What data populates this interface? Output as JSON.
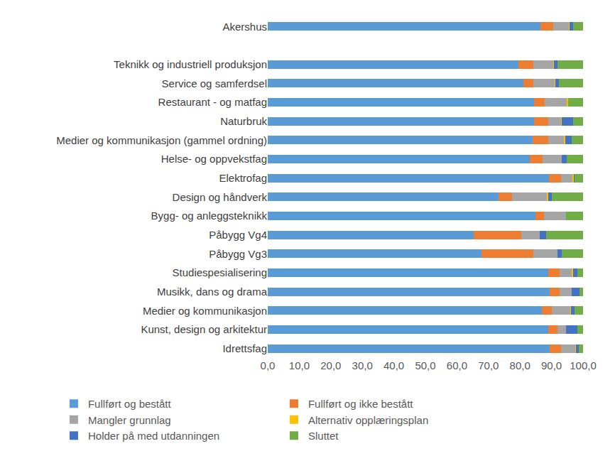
{
  "chart_data": {
    "type": "bar",
    "orientation": "horizontal",
    "stacked": true,
    "grid": false,
    "legend": "bottom",
    "categories": [
      "Akershus",
      null,
      "Teknikk og industriell produksjon",
      "Service og samferdsel",
      "Restaurant - og matfag",
      "Naturbruk",
      "Medier og kommunikasjon (gammel ordning)",
      "Helse- og oppvekstfag",
      "Elektrofag",
      "Design og håndverk",
      "Bygg- og anleggsteknikk",
      "Påbygg Vg4",
      "Påbygg Vg3",
      "Studiespesialisering",
      "Musikk, dans og drama",
      "Medier og kommunikasjon",
      "Kunst, design og arkitektur",
      "Idrettsfag"
    ],
    "series": [
      {
        "name": "Fullført og bestått",
        "color": "#5B9BD5",
        "values": [
          86.5,
          null,
          79.5,
          81.0,
          84.5,
          84.5,
          84.0,
          83.0,
          89.3,
          73.3,
          85.0,
          65.3,
          67.8,
          89.0,
          89.5,
          87.0,
          89.0,
          89.5
        ]
      },
      {
        "name": "Fullført og ikke bestått",
        "color": "#ED7D31",
        "values": [
          4.0,
          null,
          4.7,
          3.3,
          3.3,
          4.5,
          5.0,
          4.2,
          3.8,
          4.2,
          2.5,
          15.0,
          16.5,
          3.5,
          3.0,
          3.0,
          3.0,
          3.5
        ]
      },
      {
        "name": "Mangler grunnlag",
        "color": "#A5A5A5",
        "values": [
          5.0,
          null,
          6.3,
          6.7,
          7.0,
          4.0,
          5.0,
          6.0,
          3.5,
          11.0,
          7.0,
          6.0,
          7.5,
          4.0,
          3.8,
          6.0,
          2.5,
          4.5
        ]
      },
      {
        "name": "Alternativ opplæringsplan",
        "color": "#FFC000",
        "values": [
          0.2,
          null,
          0.3,
          0.3,
          0.5,
          0.3,
          0.3,
          0.1,
          0.5,
          0.5,
          0.0,
          0.0,
          0.0,
          0.3,
          0.2,
          0.2,
          0.0,
          0.2
        ]
      },
      {
        "name": "Holder på med utdanningen",
        "color": "#4472C4",
        "values": [
          1.2,
          null,
          1.2,
          1.0,
          0.0,
          3.5,
          2.0,
          1.5,
          0.3,
          1.0,
          0.0,
          2.0,
          1.5,
          1.5,
          2.3,
          1.0,
          3.8,
          1.0
        ]
      },
      {
        "name": "Sluttet",
        "color": "#70AD47",
        "values": [
          3.1,
          null,
          8.0,
          7.7,
          4.7,
          3.2,
          3.7,
          5.2,
          2.6,
          10.0,
          5.5,
          11.7,
          6.7,
          1.7,
          1.2,
          2.8,
          1.7,
          1.3
        ]
      }
    ],
    "xlim": [
      0,
      100
    ],
    "xticks": [
      {
        "value": 0,
        "label": "0,0"
      },
      {
        "value": 10,
        "label": "10,0"
      },
      {
        "value": 20,
        "label": "20,0"
      },
      {
        "value": 30,
        "label": "30,0"
      },
      {
        "value": 40,
        "label": "40,0"
      },
      {
        "value": 50,
        "label": "50,0"
      },
      {
        "value": 60,
        "label": "60,0"
      },
      {
        "value": 70,
        "label": "70,0"
      },
      {
        "value": 80,
        "label": "80,0"
      },
      {
        "value": 90,
        "label": "90,0"
      },
      {
        "value": 100,
        "label": "100,0"
      }
    ]
  }
}
